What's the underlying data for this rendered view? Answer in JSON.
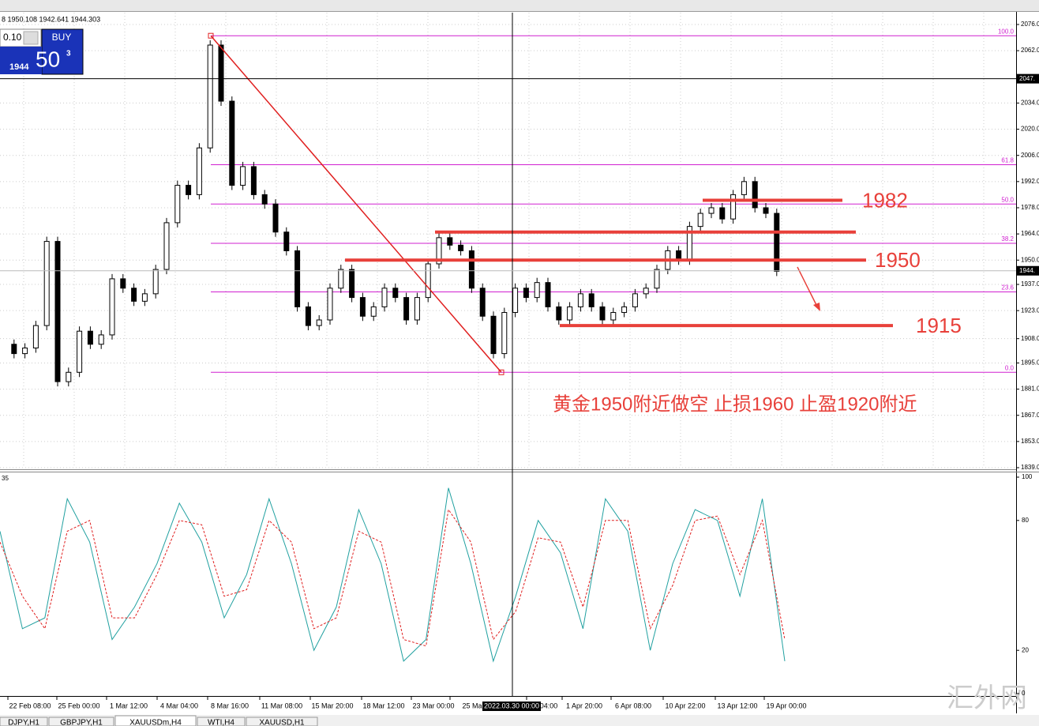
{
  "header": {
    "ohlc": "8 1950.108 1942.641 1944.303"
  },
  "trade_panel": {
    "lot": "0.10",
    "buy": "BUY",
    "price_big": "1944",
    "price_pips": "50",
    "price_frac": "3"
  },
  "price_axis": {
    "range": [
      1839,
      2076
    ],
    "ticks": [
      {
        "value": 2076,
        "label": "2076.0"
      },
      {
        "value": 2062,
        "label": "2062.0"
      },
      {
        "value": 2034,
        "label": "2034.0"
      },
      {
        "value": 2020,
        "label": "2020.0"
      },
      {
        "value": 2006,
        "label": "2006.0"
      },
      {
        "value": 1992,
        "label": "1992.0"
      },
      {
        "value": 1978,
        "label": "1978.0"
      },
      {
        "value": 1964,
        "label": "1964.0"
      },
      {
        "value": 1950,
        "label": "1950.0"
      },
      {
        "value": 1937,
        "label": "1937.0"
      },
      {
        "value": 1923,
        "label": "1923.0"
      },
      {
        "value": 1908,
        "label": "1908.0"
      },
      {
        "value": 1895,
        "label": "1895.0"
      },
      {
        "value": 1881,
        "label": "1881.0"
      },
      {
        "value": 1867,
        "label": "1867.0"
      },
      {
        "value": 1853,
        "label": "1853.0"
      },
      {
        "value": 1839,
        "label": "1839.0"
      }
    ],
    "crosshair": {
      "value": 2047,
      "label": "2047."
    },
    "current": {
      "value": 1944.3,
      "label": "1944."
    }
  },
  "fibonacci": [
    {
      "value": 2070,
      "label": "100.0"
    },
    {
      "value": 2001,
      "label": "61.8"
    },
    {
      "value": 1980,
      "label": "50.0"
    },
    {
      "value": 1959,
      "label": "38.2"
    },
    {
      "value": 1933,
      "label": "23.6"
    },
    {
      "value": 1890,
      "label": "0.0"
    }
  ],
  "trend_line": [
    2070,
    1890
  ],
  "levels": [
    {
      "value": 1982,
      "label": "1982"
    },
    {
      "value": 1965
    },
    {
      "value": 1950,
      "label": "1950"
    },
    {
      "value": 1915,
      "label": "1915"
    }
  ],
  "annotation": "黄金1950附近做空 止损1960 止盈1920附近",
  "closes": [
    1905,
    1900,
    1903,
    1915,
    1960,
    1885,
    1890,
    1912,
    1905,
    1910,
    1940,
    1935,
    1928,
    1932,
    1945,
    1970,
    1990,
    1985,
    2010,
    2065,
    2035,
    1990,
    2000,
    1985,
    1980,
    1965,
    1955,
    1925,
    1915,
    1918,
    1935,
    1945,
    1930,
    1920,
    1925,
    1935,
    1930,
    1918,
    1930,
    1948,
    1962,
    1958,
    1955,
    1935,
    1920,
    1900,
    1922,
    1935,
    1930,
    1938,
    1925,
    1918,
    1925,
    1932,
    1925,
    1918,
    1922,
    1925,
    1932,
    1935,
    1945,
    1955,
    1950,
    1968,
    1975,
    1978,
    1972,
    1985,
    1992,
    1978,
    1975,
    1944
  ],
  "stochastic": {
    "period_label": "35",
    "range": [
      0,
      100
    ],
    "ticks": [
      100,
      80,
      20,
      0
    ],
    "main": [
      75,
      30,
      35,
      90,
      70,
      25,
      40,
      60,
      88,
      70,
      35,
      55,
      90,
      60,
      20,
      40,
      85,
      60,
      15,
      25,
      95,
      60,
      15,
      45,
      80,
      65,
      30,
      90,
      75,
      20,
      60,
      85,
      80,
      45,
      90,
      15
    ],
    "signal": [
      70,
      45,
      30,
      75,
      80,
      35,
      35,
      55,
      80,
      78,
      45,
      48,
      80,
      70,
      30,
      35,
      75,
      70,
      25,
      22,
      85,
      70,
      25,
      38,
      72,
      70,
      40,
      80,
      80,
      30,
      50,
      80,
      82,
      55,
      80,
      25
    ]
  },
  "time_axis": [
    "22 Feb 08:00",
    "25 Feb 00:00",
    "1 Mar 12:00",
    "4 Mar 04:00",
    "8 Mar 16:00",
    "11 Mar 08:00",
    "15 Mar 20:00",
    "18 Mar 12:00",
    "23 Mar 00:00",
    "25 Ma",
    "04:00",
    "1 Apr 20:00",
    "6 Apr 08:00",
    "10 Apr 22:00",
    "13 Apr 12:00",
    "19 Apr 00:00"
  ],
  "crosshair_time": "2022.03.30 00:00",
  "tabs": [
    "DJPY,H1",
    "GBPJPY,H1",
    "XAUUSDm,H4",
    "WTI,H4",
    "XAUUSD,H1"
  ],
  "watermark": "汇外网"
}
